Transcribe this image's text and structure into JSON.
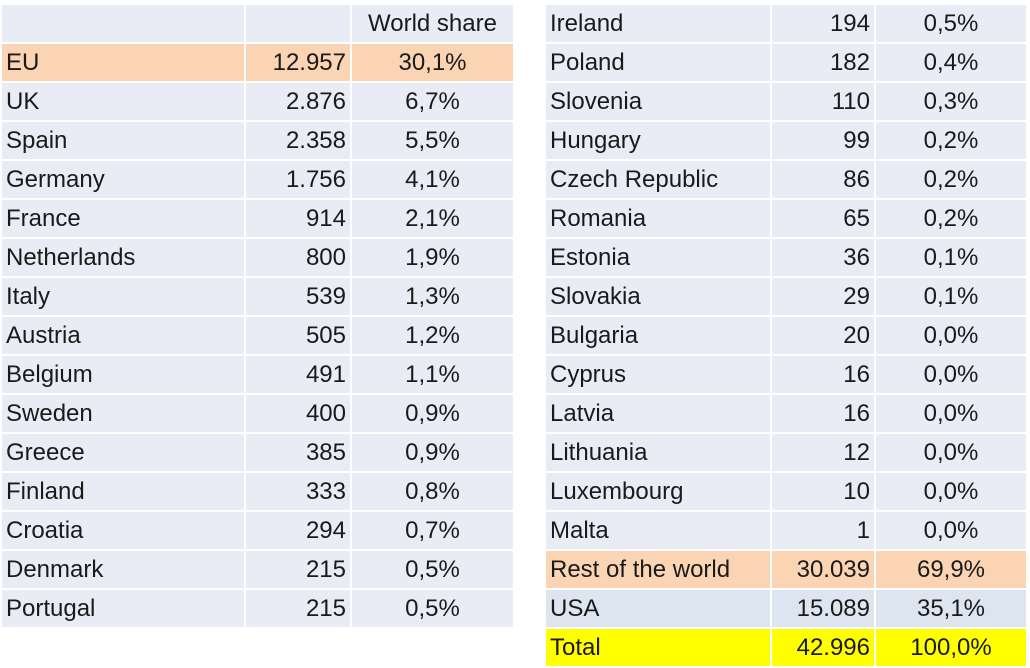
{
  "chart_data": {
    "type": "table",
    "columns": [
      "",
      "",
      "World share"
    ],
    "colors": {
      "row": "#e9ecf5",
      "highlight_orange": "#fbd4b4",
      "highlight_blue": "#dce5f0",
      "total": "#ffff00"
    },
    "left_rows": [
      {
        "name": "EU",
        "value": "12.957",
        "share": "30,1%",
        "style": "eu"
      },
      {
        "name": "UK",
        "value": "2.876",
        "share": "6,7%"
      },
      {
        "name": "Spain",
        "value": "2.358",
        "share": "5,5%"
      },
      {
        "name": "Germany",
        "value": "1.756",
        "share": "4,1%"
      },
      {
        "name": "France",
        "value": "914",
        "share": "2,1%"
      },
      {
        "name": "Netherlands",
        "value": "800",
        "share": "1,9%"
      },
      {
        "name": "Italy",
        "value": "539",
        "share": "1,3%"
      },
      {
        "name": "Austria",
        "value": "505",
        "share": "1,2%"
      },
      {
        "name": "Belgium",
        "value": "491",
        "share": "1,1%"
      },
      {
        "name": "Sweden",
        "value": "400",
        "share": "0,9%"
      },
      {
        "name": "Greece",
        "value": "385",
        "share": "0,9%"
      },
      {
        "name": "Finland",
        "value": "333",
        "share": "0,8%"
      },
      {
        "name": "Croatia",
        "value": "294",
        "share": "0,7%"
      },
      {
        "name": "Denmark",
        "value": "215",
        "share": "0,5%"
      },
      {
        "name": "Portugal",
        "value": "215",
        "share": "0,5%"
      }
    ],
    "right_rows": [
      {
        "name": "Ireland",
        "value": "194",
        "share": "0,5%"
      },
      {
        "name": "Poland",
        "value": "182",
        "share": "0,4%"
      },
      {
        "name": "Slovenia",
        "value": "110",
        "share": "0,3%"
      },
      {
        "name": "Hungary",
        "value": "99",
        "share": "0,2%"
      },
      {
        "name": "Czech Republic",
        "value": "86",
        "share": "0,2%"
      },
      {
        "name": "Romania",
        "value": "65",
        "share": "0,2%"
      },
      {
        "name": "Estonia",
        "value": "36",
        "share": "0,1%"
      },
      {
        "name": "Slovakia",
        "value": "29",
        "share": "0,1%"
      },
      {
        "name": "Bulgaria",
        "value": "20",
        "share": "0,0%"
      },
      {
        "name": "Cyprus",
        "value": "16",
        "share": "0,0%"
      },
      {
        "name": "Latvia",
        "value": "16",
        "share": "0,0%"
      },
      {
        "name": "Lithuania",
        "value": "12",
        "share": "0,0%"
      },
      {
        "name": "Luxembourg",
        "value": "10",
        "share": "0,0%"
      },
      {
        "name": "Malta",
        "value": "1",
        "share": "0,0%"
      },
      {
        "name": "Rest of the world",
        "value": "30.039",
        "share": "69,9%",
        "style": "rest"
      },
      {
        "name": "USA",
        "value": "15.089",
        "share": "35,1%",
        "style": "usa"
      },
      {
        "name": "Total",
        "value": "42.996",
        "share": "100,0%",
        "style": "total"
      }
    ]
  }
}
